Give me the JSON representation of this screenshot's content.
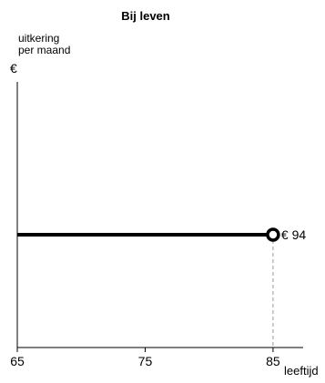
{
  "chart_data": {
    "type": "line",
    "title": "Bij leven",
    "ylabel_line1": "uitkering",
    "ylabel_line2": "per maand",
    "y_unit": "€",
    "xlabel": "leeftijd",
    "xlim": [
      65,
      87
    ],
    "x_ticks": [
      65,
      75,
      85
    ],
    "series": [
      {
        "x": [
          65,
          85
        ],
        "y": [
          94,
          94
        ],
        "end_label": "€ 94"
      }
    ],
    "grid": false
  }
}
